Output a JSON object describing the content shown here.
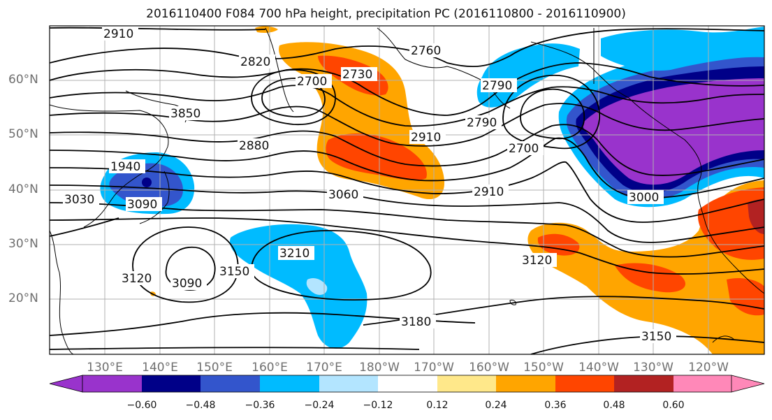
{
  "title": "2016110400 F084 700 hPa height, precipitation PC (2016110800 - 2016110900)",
  "map": {
    "lat_labels": [
      "60°N",
      "50°N",
      "40°N",
      "30°N",
      "20°N"
    ],
    "lon_labels": [
      "130°E",
      "140°E",
      "150°E",
      "160°E",
      "170°E",
      "180°W",
      "170°W",
      "160°W",
      "150°W",
      "140°W",
      "130°W",
      "120°W"
    ],
    "contour_labels": [
      "2910",
      "2820",
      "2700",
      "2730",
      "2760",
      "2790",
      "3850",
      "2880",
      "2910",
      "2700",
      "2910",
      "1940",
      "3030",
      "3090",
      "3060",
      "3120",
      "3090",
      "3150",
      "3210",
      "3180",
      "3120",
      "3150",
      "2790",
      "3000"
    ]
  },
  "colorbar": {
    "colors": [
      "#9933cc",
      "#000088",
      "#3355cc",
      "#00bbff",
      "#b3e5ff",
      "#ffffff",
      "#ffe88a",
      "#ffa500",
      "#ff4500",
      "#b22222",
      "#ff88b8"
    ],
    "tick_labels": [
      "−0.60",
      "−0.48",
      "−0.36",
      "−0.24",
      "−0.12",
      "0.12",
      "0.24",
      "0.36",
      "0.48",
      "0.60"
    ]
  }
}
